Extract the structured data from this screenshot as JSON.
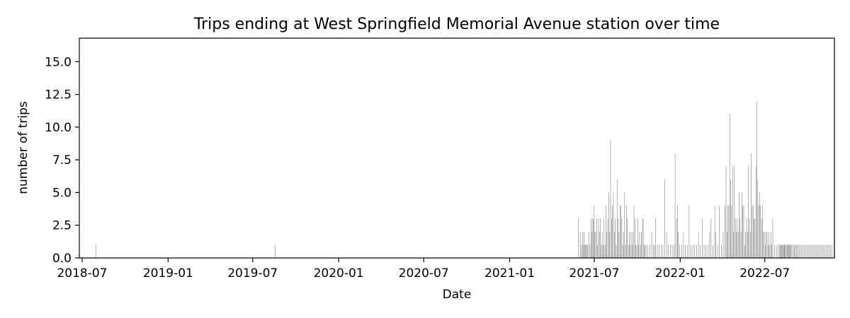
{
  "chart_data": {
    "type": "bar",
    "title": "Trips ending at West Springfield Memorial Avenue station over time",
    "xlabel": "Date",
    "ylabel": "number of trips",
    "xlim": [
      "2018-06-25",
      "2022-11-27"
    ],
    "ylim": [
      0,
      16.8
    ],
    "yticks": [
      "0.0",
      "2.5",
      "5.0",
      "7.5",
      "10.0",
      "12.5",
      "15.0"
    ],
    "xticks": [
      "2018-07",
      "2019-01",
      "2019-07",
      "2020-01",
      "2020-07",
      "2021-01",
      "2021-07",
      "2022-01",
      "2022-07"
    ],
    "bar_color": "#808080",
    "grid": false,
    "data": [
      [
        "2018-07-31",
        1
      ],
      [
        "2019-08-18",
        1
      ],
      [
        "2021-05-28",
        3
      ],
      [
        "2021-06-01",
        2
      ],
      [
        "2021-06-03",
        1
      ],
      [
        "2021-06-06",
        2
      ],
      [
        "2021-06-07",
        1
      ],
      [
        "2021-06-09",
        2
      ],
      [
        "2021-06-10",
        1
      ],
      [
        "2021-06-12",
        1
      ],
      [
        "2021-06-13",
        1
      ],
      [
        "2021-06-15",
        1
      ],
      [
        "2021-06-17",
        1
      ],
      [
        "2021-06-20",
        2
      ],
      [
        "2021-06-22",
        1
      ],
      [
        "2021-06-24",
        3
      ],
      [
        "2021-06-26",
        2
      ],
      [
        "2021-06-28",
        3
      ],
      [
        "2021-06-29",
        3
      ],
      [
        "2021-07-01",
        4
      ],
      [
        "2021-07-02",
        2
      ],
      [
        "2021-07-04",
        2
      ],
      [
        "2021-07-06",
        3
      ],
      [
        "2021-07-08",
        1
      ],
      [
        "2021-07-10",
        3
      ],
      [
        "2021-07-12",
        2
      ],
      [
        "2021-07-14",
        3
      ],
      [
        "2021-07-16",
        1
      ],
      [
        "2021-07-18",
        2
      ],
      [
        "2021-07-20",
        1
      ],
      [
        "2021-07-22",
        3
      ],
      [
        "2021-07-24",
        1
      ],
      [
        "2021-07-26",
        4
      ],
      [
        "2021-07-28",
        2
      ],
      [
        "2021-07-30",
        3
      ],
      [
        "2021-08-01",
        5
      ],
      [
        "2021-08-03",
        2
      ],
      [
        "2021-08-05",
        9
      ],
      [
        "2021-08-07",
        3
      ],
      [
        "2021-08-09",
        4
      ],
      [
        "2021-08-11",
        5
      ],
      [
        "2021-08-13",
        2
      ],
      [
        "2021-08-15",
        3
      ],
      [
        "2021-08-17",
        1
      ],
      [
        "2021-08-19",
        6
      ],
      [
        "2021-08-21",
        3
      ],
      [
        "2021-08-23",
        2
      ],
      [
        "2021-08-25",
        4
      ],
      [
        "2021-08-27",
        4
      ],
      [
        "2021-08-29",
        3
      ],
      [
        "2021-08-31",
        1
      ],
      [
        "2021-09-02",
        2
      ],
      [
        "2021-09-04",
        5
      ],
      [
        "2021-09-06",
        1
      ],
      [
        "2021-09-08",
        4
      ],
      [
        "2021-09-10",
        3
      ],
      [
        "2021-09-12",
        1
      ],
      [
        "2021-09-14",
        2
      ],
      [
        "2021-09-16",
        1
      ],
      [
        "2021-09-18",
        2
      ],
      [
        "2021-09-20",
        1
      ],
      [
        "2021-09-22",
        2
      ],
      [
        "2021-09-24",
        4
      ],
      [
        "2021-09-26",
        3
      ],
      [
        "2021-09-28",
        1
      ],
      [
        "2021-09-30",
        1
      ],
      [
        "2021-10-02",
        3
      ],
      [
        "2021-10-04",
        1
      ],
      [
        "2021-10-06",
        2
      ],
      [
        "2021-10-08",
        1
      ],
      [
        "2021-10-10",
        2
      ],
      [
        "2021-10-12",
        3
      ],
      [
        "2021-10-14",
        3
      ],
      [
        "2021-10-16",
        1
      ],
      [
        "2021-10-18",
        1
      ],
      [
        "2021-10-20",
        1
      ],
      [
        "2021-10-24",
        1
      ],
      [
        "2021-10-28",
        1
      ],
      [
        "2021-11-01",
        2
      ],
      [
        "2021-11-05",
        1
      ],
      [
        "2021-11-07",
        1
      ],
      [
        "2021-11-09",
        3
      ],
      [
        "2021-11-13",
        1
      ],
      [
        "2021-11-17",
        1
      ],
      [
        "2021-11-21",
        1
      ],
      [
        "2021-11-25",
        1
      ],
      [
        "2021-11-29",
        6
      ],
      [
        "2021-12-03",
        2
      ],
      [
        "2021-12-07",
        1
      ],
      [
        "2021-12-11",
        1
      ],
      [
        "2021-12-15",
        1
      ],
      [
        "2021-12-19",
        1
      ],
      [
        "2021-12-21",
        8
      ],
      [
        "2021-12-24",
        3
      ],
      [
        "2021-12-26",
        4
      ],
      [
        "2021-12-28",
        2
      ],
      [
        "2021-12-31",
        1
      ],
      [
        "2022-01-04",
        1
      ],
      [
        "2022-01-08",
        2
      ],
      [
        "2022-01-12",
        1
      ],
      [
        "2022-01-16",
        1
      ],
      [
        "2022-01-20",
        4
      ],
      [
        "2022-01-24",
        1
      ],
      [
        "2022-01-28",
        1
      ],
      [
        "2022-02-01",
        1
      ],
      [
        "2022-02-05",
        1
      ],
      [
        "2022-02-09",
        2
      ],
      [
        "2022-02-13",
        1
      ],
      [
        "2022-02-17",
        3
      ],
      [
        "2022-02-21",
        1
      ],
      [
        "2022-02-25",
        1
      ],
      [
        "2022-03-01",
        1
      ],
      [
        "2022-03-05",
        2
      ],
      [
        "2022-03-08",
        3
      ],
      [
        "2022-03-12",
        1
      ],
      [
        "2022-03-16",
        4
      ],
      [
        "2022-03-18",
        2
      ],
      [
        "2022-03-22",
        1
      ],
      [
        "2022-03-26",
        4
      ],
      [
        "2022-03-30",
        1
      ],
      [
        "2022-04-03",
        2
      ],
      [
        "2022-04-07",
        4
      ],
      [
        "2022-04-09",
        7
      ],
      [
        "2022-04-11",
        2
      ],
      [
        "2022-04-13",
        4
      ],
      [
        "2022-04-15",
        4
      ],
      [
        "2022-04-17",
        11
      ],
      [
        "2022-04-19",
        6
      ],
      [
        "2022-04-21",
        4
      ],
      [
        "2022-04-23",
        7
      ],
      [
        "2022-04-25",
        2
      ],
      [
        "2022-04-27",
        7
      ],
      [
        "2022-04-29",
        3
      ],
      [
        "2022-05-01",
        2
      ],
      [
        "2022-05-03",
        3
      ],
      [
        "2022-05-05",
        2
      ],
      [
        "2022-05-07",
        5
      ],
      [
        "2022-05-09",
        3
      ],
      [
        "2022-05-11",
        2
      ],
      [
        "2022-05-13",
        5
      ],
      [
        "2022-05-15",
        4
      ],
      [
        "2022-05-17",
        4
      ],
      [
        "2022-05-19",
        1
      ],
      [
        "2022-05-21",
        2
      ],
      [
        "2022-05-23",
        3
      ],
      [
        "2022-05-25",
        2
      ],
      [
        "2022-05-27",
        7
      ],
      [
        "2022-05-29",
        3
      ],
      [
        "2022-05-31",
        2
      ],
      [
        "2022-06-02",
        8
      ],
      [
        "2022-06-04",
        4
      ],
      [
        "2022-06-06",
        4
      ],
      [
        "2022-06-08",
        3
      ],
      [
        "2022-06-10",
        3
      ],
      [
        "2022-06-12",
        7
      ],
      [
        "2022-06-14",
        12
      ],
      [
        "2022-06-16",
        6
      ],
      [
        "2022-06-18",
        4
      ],
      [
        "2022-06-20",
        5
      ],
      [
        "2022-06-22",
        4
      ],
      [
        "2022-06-24",
        3
      ],
      [
        "2022-06-26",
        4
      ],
      [
        "2022-06-28",
        2
      ],
      [
        "2022-06-30",
        2
      ],
      [
        "2022-07-02",
        1
      ],
      [
        "2022-07-04",
        2
      ],
      [
        "2022-07-06",
        2
      ],
      [
        "2022-07-08",
        1
      ],
      [
        "2022-07-10",
        2
      ],
      [
        "2022-07-12",
        1
      ],
      [
        "2022-07-14",
        2
      ],
      [
        "2022-07-16",
        1
      ],
      [
        "2022-07-18",
        3
      ],
      [
        "2022-07-22",
        1
      ],
      [
        "2022-07-26",
        1
      ],
      [
        "2022-07-30",
        1
      ],
      [
        "2022-08-02",
        1
      ],
      [
        "2022-08-03",
        1
      ],
      [
        "2022-08-05",
        1
      ],
      [
        "2022-08-06",
        1
      ],
      [
        "2022-08-08",
        1
      ],
      [
        "2022-08-09",
        1
      ],
      [
        "2022-08-11",
        1
      ],
      [
        "2022-08-12",
        1
      ],
      [
        "2022-08-13",
        1
      ],
      [
        "2022-08-14",
        1
      ],
      [
        "2022-08-17",
        1
      ],
      [
        "2022-08-18",
        1
      ],
      [
        "2022-08-20",
        1
      ],
      [
        "2022-08-21",
        1
      ],
      [
        "2022-08-23",
        1
      ],
      [
        "2022-08-24",
        1
      ],
      [
        "2022-08-26",
        1
      ],
      [
        "2022-08-28",
        1
      ],
      [
        "2022-08-31",
        1
      ],
      [
        "2022-09-02",
        1
      ],
      [
        "2022-09-04",
        1
      ],
      [
        "2022-09-07",
        1
      ],
      [
        "2022-09-09",
        1
      ],
      [
        "2022-09-12",
        1
      ],
      [
        "2022-09-14",
        1
      ],
      [
        "2022-09-17",
        1
      ],
      [
        "2022-09-20",
        1
      ],
      [
        "2022-09-23",
        1
      ],
      [
        "2022-09-26",
        1
      ],
      [
        "2022-09-29",
        1
      ],
      [
        "2022-10-02",
        1
      ],
      [
        "2022-10-05",
        1
      ],
      [
        "2022-10-08",
        1
      ],
      [
        "2022-10-11",
        1
      ],
      [
        "2022-10-14",
        1
      ],
      [
        "2022-10-17",
        1
      ],
      [
        "2022-10-20",
        1
      ],
      [
        "2022-10-23",
        1
      ],
      [
        "2022-10-26",
        1
      ],
      [
        "2022-10-29",
        1
      ],
      [
        "2022-11-01",
        1
      ],
      [
        "2022-11-04",
        1
      ],
      [
        "2022-11-07",
        1
      ],
      [
        "2022-11-10",
        1
      ],
      [
        "2022-11-13",
        1
      ],
      [
        "2022-11-16",
        1
      ],
      [
        "2022-11-19",
        1
      ],
      [
        "2022-11-22",
        1
      ]
    ]
  }
}
